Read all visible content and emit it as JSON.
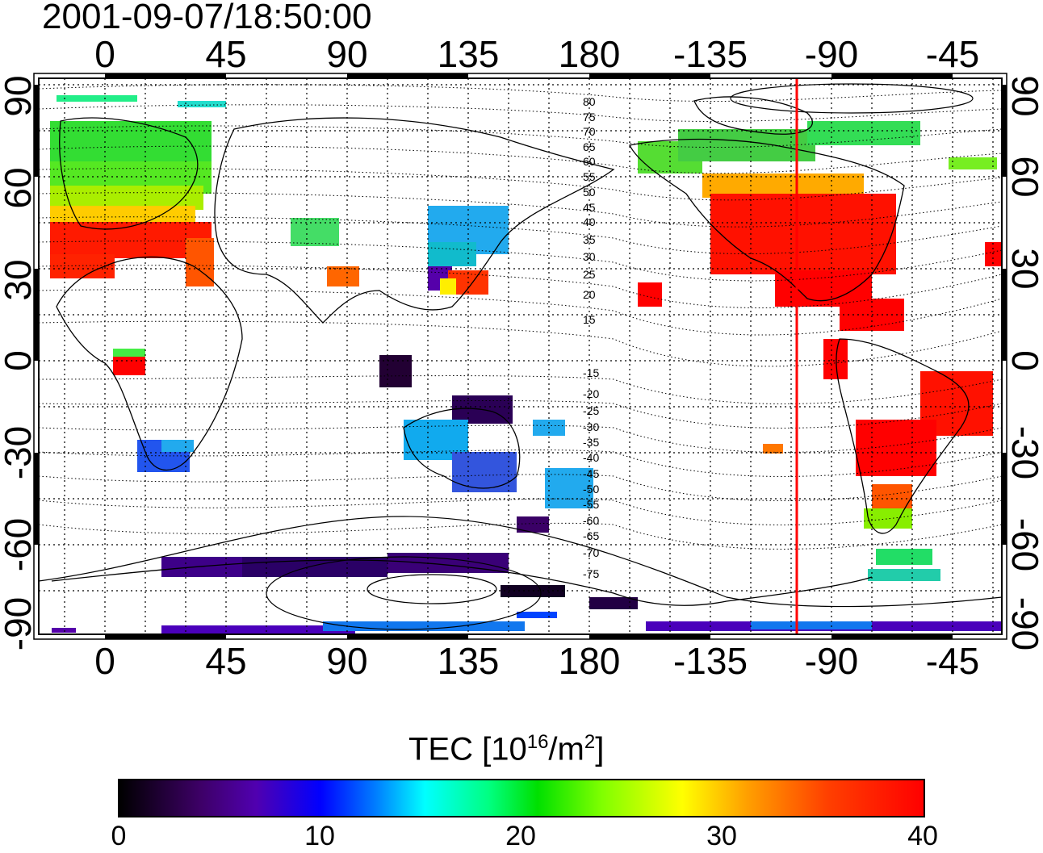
{
  "title": "2001-09-07/18:50:00",
  "map": {
    "lon_ticks": [
      "0",
      "45",
      "90",
      "135",
      "180",
      "-135",
      "-90",
      "-45"
    ],
    "lat_ticks": [
      "90",
      "60",
      "30",
      "0",
      "-30",
      "-60",
      "-90"
    ],
    "subsolar_line_color": "#ff0000",
    "contour_labels_north": [
      "80",
      "75",
      "70",
      "65",
      "60",
      "55",
      "50",
      "45",
      "40",
      "35",
      "30",
      "25",
      "20",
      "15"
    ],
    "contour_labels_south": [
      "-15",
      "-20",
      "-25",
      "-30",
      "-35",
      "-40",
      "-45",
      "-50",
      "-55",
      "-60",
      "-65",
      "-70",
      "-75"
    ]
  },
  "colorbar": {
    "title_prefix": "TEC  [10",
    "title_exp": "16",
    "title_mid": "/m",
    "title_exp2": "2",
    "title_suffix": "]",
    "ticks": [
      "0",
      "10",
      "20",
      "30",
      "40"
    ],
    "min": 0,
    "max": 40,
    "colors": [
      "#000000",
      "#5000b0",
      "#0000ff",
      "#00ffff",
      "#00e000",
      "#ffff00",
      "#ff0000"
    ]
  }
}
